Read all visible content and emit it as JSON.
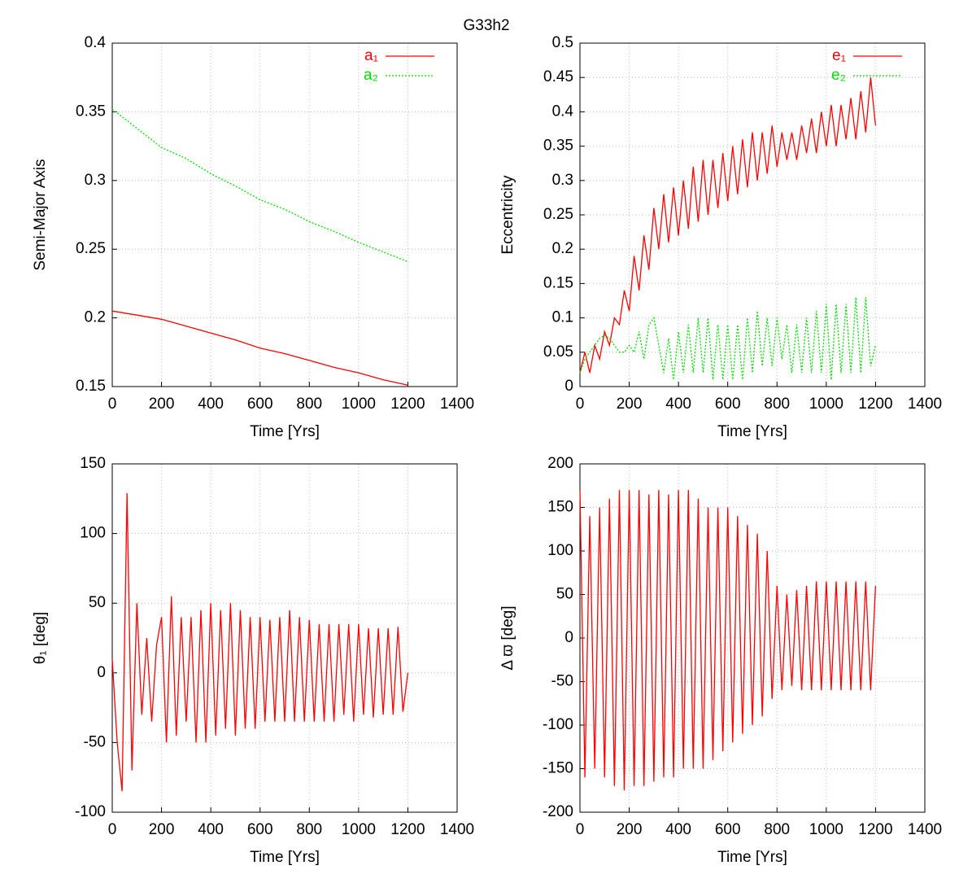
{
  "title": "G33h2",
  "chart_data": [
    {
      "type": "line",
      "xlabel": "Time [Yrs]",
      "ylabel": "Semi-Major Axis",
      "grid": true,
      "legend": "top-right",
      "xlim": [
        0,
        1400
      ],
      "xticks": [
        0,
        200,
        400,
        600,
        800,
        1000,
        1200,
        1400
      ],
      "ylim": [
        0.15,
        0.4
      ],
      "yticks": [
        0.15,
        0.2,
        0.25,
        0.3,
        0.35,
        0.4
      ],
      "x": [
        0,
        100,
        200,
        300,
        400,
        500,
        600,
        700,
        800,
        900,
        1000,
        1100,
        1200
      ],
      "series": [
        {
          "name": "a₁",
          "color": "#ff0000",
          "style": "solid",
          "values": [
            0.205,
            0.202,
            0.199,
            0.194,
            0.189,
            0.184,
            0.178,
            0.174,
            0.169,
            0.164,
            0.16,
            0.155,
            0.151
          ]
        },
        {
          "name": "a₂",
          "color": "#00e000",
          "style": "dotted",
          "values": [
            0.352,
            0.338,
            0.324,
            0.316,
            0.305,
            0.296,
            0.286,
            0.279,
            0.27,
            0.263,
            0.255,
            0.248,
            0.241
          ]
        }
      ]
    },
    {
      "type": "line",
      "xlabel": "Time [Yrs]",
      "ylabel": "Eccentricity",
      "grid": true,
      "legend": "top-right",
      "xlim": [
        0,
        1400
      ],
      "xticks": [
        0,
        200,
        400,
        600,
        800,
        1000,
        1200,
        1400
      ],
      "ylim": [
        0,
        0.5
      ],
      "yticks": [
        0,
        0.05,
        0.1,
        0.15,
        0.2,
        0.25,
        0.3,
        0.35,
        0.4,
        0.45,
        0.5
      ],
      "x": [
        0,
        20,
        40,
        60,
        80,
        100,
        120,
        140,
        160,
        180,
        200,
        220,
        240,
        260,
        280,
        300,
        320,
        340,
        360,
        380,
        400,
        420,
        440,
        460,
        480,
        500,
        520,
        540,
        560,
        580,
        600,
        620,
        640,
        660,
        680,
        700,
        720,
        740,
        760,
        780,
        800,
        820,
        840,
        860,
        880,
        900,
        920,
        940,
        960,
        980,
        1000,
        1020,
        1040,
        1060,
        1080,
        1100,
        1120,
        1140,
        1160,
        1180,
        1200
      ],
      "series": [
        {
          "name": "e₁",
          "color": "#ff0000",
          "style": "solid",
          "values": [
            0.02,
            0.05,
            0.02,
            0.06,
            0.04,
            0.08,
            0.06,
            0.1,
            0.09,
            0.14,
            0.11,
            0.19,
            0.14,
            0.22,
            0.17,
            0.26,
            0.2,
            0.28,
            0.21,
            0.29,
            0.22,
            0.3,
            0.23,
            0.32,
            0.24,
            0.33,
            0.25,
            0.33,
            0.26,
            0.34,
            0.27,
            0.35,
            0.28,
            0.36,
            0.29,
            0.37,
            0.3,
            0.37,
            0.31,
            0.38,
            0.32,
            0.37,
            0.33,
            0.37,
            0.33,
            0.38,
            0.34,
            0.39,
            0.34,
            0.4,
            0.35,
            0.41,
            0.35,
            0.41,
            0.36,
            0.42,
            0.36,
            0.43,
            0.37,
            0.45,
            0.38
          ]
        },
        {
          "name": "e₂",
          "color": "#00e000",
          "style": "dotted",
          "values": [
            0.02,
            0.04,
            0.05,
            0.06,
            0.07,
            0.075,
            0.07,
            0.06,
            0.05,
            0.05,
            0.06,
            0.05,
            0.08,
            0.04,
            0.09,
            0.1,
            0.06,
            0.02,
            0.07,
            0.01,
            0.08,
            0.02,
            0.09,
            0.02,
            0.1,
            0.02,
            0.1,
            0.01,
            0.09,
            0.01,
            0.09,
            0.01,
            0.09,
            0.01,
            0.1,
            0.02,
            0.11,
            0.03,
            0.1,
            0.03,
            0.1,
            0.04,
            0.09,
            0.02,
            0.09,
            0.02,
            0.1,
            0.02,
            0.11,
            0.02,
            0.12,
            0.01,
            0.12,
            0.02,
            0.12,
            0.02,
            0.13,
            0.02,
            0.13,
            0.03,
            0.06
          ]
        }
      ]
    },
    {
      "type": "line",
      "xlabel": "Time [Yrs]",
      "ylabel": "θ₁  [deg]",
      "grid": true,
      "xlim": [
        0,
        1400
      ],
      "xticks": [
        0,
        200,
        400,
        600,
        800,
        1000,
        1200,
        1400
      ],
      "ylim": [
        -100,
        150
      ],
      "yticks": [
        -100,
        -50,
        0,
        50,
        100,
        150
      ],
      "x": [
        0,
        20,
        40,
        60,
        80,
        100,
        120,
        140,
        160,
        180,
        200,
        220,
        240,
        260,
        280,
        300,
        320,
        340,
        360,
        380,
        400,
        420,
        440,
        460,
        480,
        500,
        520,
        540,
        560,
        580,
        600,
        620,
        640,
        660,
        680,
        700,
        720,
        740,
        760,
        780,
        800,
        820,
        840,
        860,
        880,
        900,
        920,
        940,
        960,
        980,
        1000,
        1020,
        1040,
        1060,
        1080,
        1100,
        1120,
        1140,
        1160,
        1180,
        1200
      ],
      "series": [
        {
          "color": "#ff0000",
          "style": "solid",
          "values": [
            10,
            -50,
            -85,
            129,
            -70,
            50,
            -30,
            25,
            -35,
            20,
            40,
            -50,
            55,
            -45,
            40,
            -35,
            40,
            -50,
            45,
            -50,
            50,
            -45,
            45,
            -40,
            50,
            -45,
            45,
            -40,
            40,
            -40,
            40,
            -35,
            38,
            -35,
            40,
            -35,
            45,
            -35,
            40,
            -35,
            38,
            -35,
            35,
            -35,
            35,
            -35,
            35,
            -30,
            35,
            -35,
            35,
            -30,
            32,
            -32,
            32,
            -30,
            32,
            -30,
            33,
            -28,
            0
          ]
        }
      ]
    },
    {
      "type": "line",
      "xlabel": "Time [Yrs]",
      "ylabel": "Δ ϖ  [deg]",
      "grid": true,
      "xlim": [
        0,
        1400
      ],
      "xticks": [
        0,
        200,
        400,
        600,
        800,
        1000,
        1200,
        1400
      ],
      "ylim": [
        -200,
        200
      ],
      "yticks": [
        -200,
        -150,
        -100,
        -50,
        0,
        50,
        100,
        150,
        200
      ],
      "x": [
        0,
        20,
        40,
        60,
        80,
        100,
        120,
        140,
        160,
        180,
        200,
        220,
        240,
        260,
        280,
        300,
        320,
        340,
        360,
        380,
        400,
        420,
        440,
        460,
        480,
        500,
        520,
        540,
        560,
        580,
        600,
        620,
        640,
        660,
        680,
        700,
        720,
        740,
        760,
        780,
        800,
        820,
        840,
        860,
        880,
        900,
        920,
        940,
        960,
        980,
        1000,
        1020,
        1040,
        1060,
        1080,
        1100,
        1120,
        1140,
        1160,
        1180,
        1200
      ],
      "series": [
        {
          "color": "#ff0000",
          "style": "solid",
          "values": [
            170,
            -160,
            140,
            -150,
            150,
            -160,
            160,
            -170,
            170,
            -175,
            170,
            -170,
            170,
            -170,
            165,
            -165,
            170,
            -160,
            165,
            -160,
            170,
            -150,
            170,
            -150,
            160,
            -150,
            150,
            -140,
            150,
            -130,
            150,
            -120,
            140,
            -110,
            130,
            -100,
            120,
            -90,
            100,
            -70,
            60,
            -60,
            50,
            -55,
            55,
            -60,
            60,
            -60,
            65,
            -60,
            65,
            -60,
            65,
            -60,
            65,
            -60,
            65,
            -60,
            65,
            -60,
            60
          ]
        }
      ]
    }
  ]
}
